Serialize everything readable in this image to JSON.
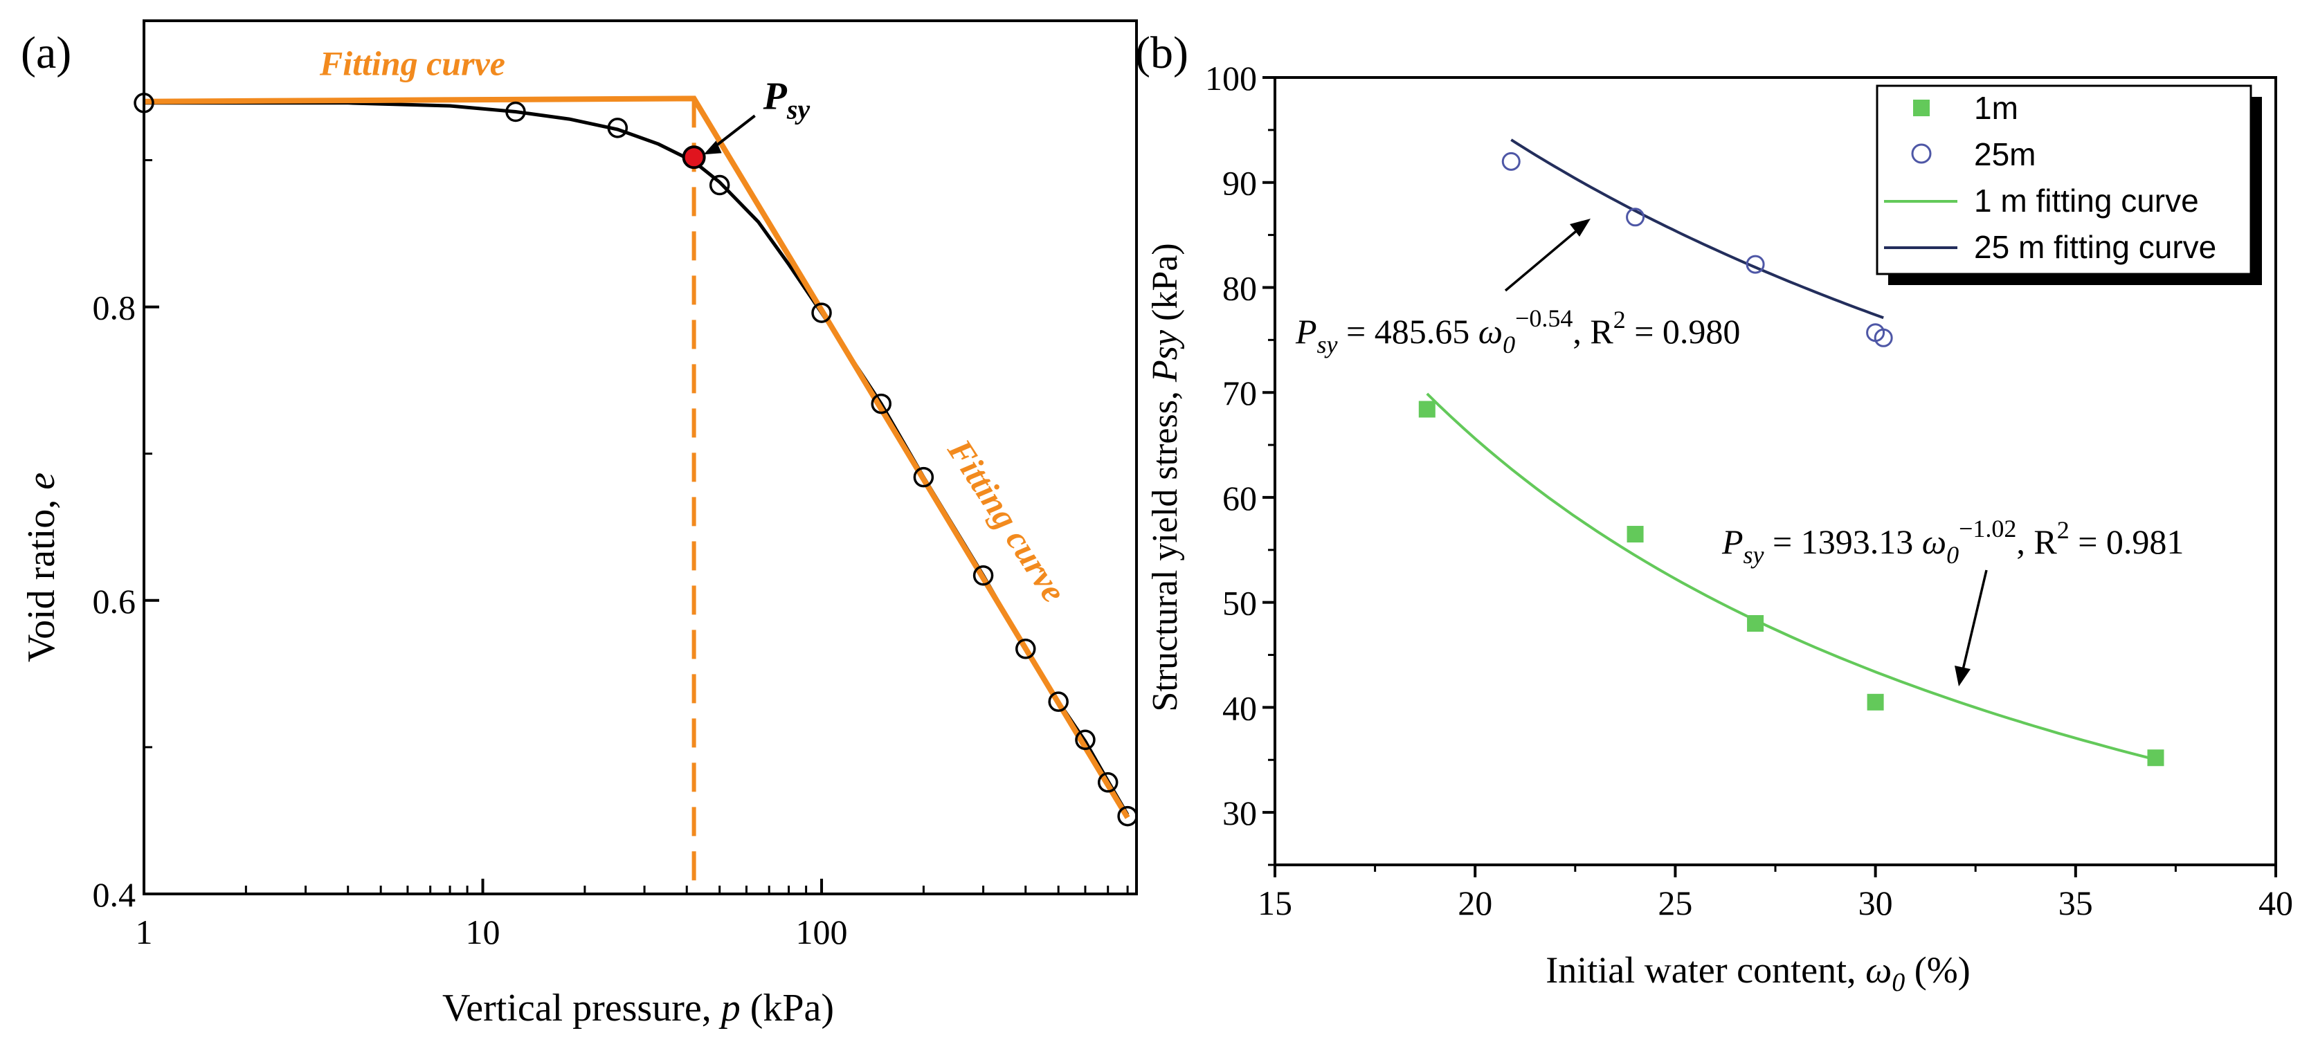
{
  "colors": {
    "black": "#000000",
    "orange": "#F28A1E",
    "red": "#E0141E",
    "green": "#63C95A",
    "navy": "#232E5C",
    "circle_blue": "#4E57A6"
  },
  "chart_data": [
    {
      "id": "a",
      "type": "scatter",
      "panel_label": "(a)",
      "xscale": "log",
      "xlim": [
        1,
        850
      ],
      "ylim": [
        0.4,
        0.995
      ],
      "xticks": [
        1,
        10,
        100
      ],
      "xtick_labels": [
        "1",
        "10",
        "100"
      ],
      "yticks": [
        0.4,
        0.6,
        0.8
      ],
      "ytick_labels": [
        "0.4",
        "0.6",
        "0.8"
      ],
      "xlabel": {
        "pre": "Vertical pressure, ",
        "var": "p",
        "post": " (kPa)"
      },
      "ylabel": {
        "pre": "Void ratio, ",
        "var": "e"
      },
      "points": {
        "x": [
          1,
          12.5,
          25,
          50,
          100,
          150,
          200,
          300,
          400,
          500,
          600,
          700,
          800
        ],
        "y": [
          0.939,
          0.933,
          0.922,
          0.883,
          0.796,
          0.734,
          0.684,
          0.617,
          0.567,
          0.531,
          0.505,
          0.476,
          0.453
        ]
      },
      "curve": {
        "x": [
          1,
          4,
          8,
          12.5,
          18,
          25,
          33,
          42,
          50,
          65,
          80,
          100,
          150,
          200,
          300,
          400,
          500,
          600,
          700,
          800
        ],
        "y": [
          0.939,
          0.939,
          0.937,
          0.933,
          0.928,
          0.921,
          0.911,
          0.899,
          0.885,
          0.858,
          0.829,
          0.796,
          0.734,
          0.684,
          0.617,
          0.567,
          0.531,
          0.504,
          0.477,
          0.454
        ]
      },
      "fit_line": {
        "x": [
          1,
          42,
          800
        ],
        "y": [
          0.94,
          0.942,
          0.452
        ]
      },
      "yield_point": {
        "x": 42,
        "y": 0.902,
        "label": "P",
        "label_sub": "sy"
      },
      "vline_x": 42,
      "annotations": [
        {
          "text": "Fitting curve",
          "x": 6.2,
          "y": 0.958,
          "rotate": 0
        },
        {
          "text": "Fitting curve",
          "x": 330,
          "y": 0.65,
          "rotate": 57
        }
      ]
    },
    {
      "id": "b",
      "type": "scatter",
      "panel_label": "(b)",
      "xlim": [
        15,
        40
      ],
      "ylim": [
        25,
        100
      ],
      "xticks": [
        15,
        20,
        25,
        30,
        35,
        40
      ],
      "xtick_labels": [
        "15",
        "20",
        "25",
        "30",
        "35",
        "40"
      ],
      "yticks": [
        30,
        40,
        50,
        60,
        70,
        80,
        90,
        100
      ],
      "ytick_labels": [
        "30",
        "40",
        "50",
        "60",
        "70",
        "80",
        "90",
        "100"
      ],
      "xlabel": {
        "pre": "Initial water content, ",
        "var": "ω",
        "var_sub": "0",
        "post": " (%)"
      },
      "ylabel": {
        "pre": "Structural yield stress, ",
        "var": "Psy",
        "post": " (kPa)"
      },
      "series": [
        {
          "name": "1m",
          "marker": "square",
          "x": [
            18.8,
            24,
            27,
            30,
            37
          ],
          "y": [
            68.4,
            56.5,
            48,
            40.5,
            35.2
          ]
        },
        {
          "name": "25m",
          "marker": "circle",
          "x": [
            20.9,
            24,
            27,
            30,
            30.2
          ],
          "y": [
            92,
            86.7,
            82.2,
            75.7,
            75.2
          ]
        }
      ],
      "fits": [
        {
          "name": "1 m fitting curve",
          "a": 1393.13,
          "b": -1.02,
          "x_range": [
            18.8,
            37
          ],
          "R2": 0.981
        },
        {
          "name": "25 m fitting curve",
          "a": 485.65,
          "b": -0.54,
          "x_range": [
            20.9,
            30.2
          ],
          "R2": 0.98
        }
      ],
      "legend": {
        "position": "top-right",
        "entries": [
          "1m",
          "25m",
          "1 m fitting curve",
          "25 m fitting curve"
        ]
      },
      "equations": [
        {
          "lhs": "P",
          "lhs_sub": "sy",
          "mid": " = 485.65 ",
          "var": "ω",
          "var_sub": "0",
          "exp": "−0.54",
          "tail": ", R",
          "tail_exp": "2",
          "tail_end": " = 0.980"
        },
        {
          "lhs": "P",
          "lhs_sub": "sy",
          "mid": " = 1393.13 ",
          "var": "ω",
          "var_sub": "0",
          "exp": "−1.02",
          "tail": ", R",
          "tail_exp": "2",
          "tail_end": " = 0.981"
        }
      ]
    }
  ]
}
